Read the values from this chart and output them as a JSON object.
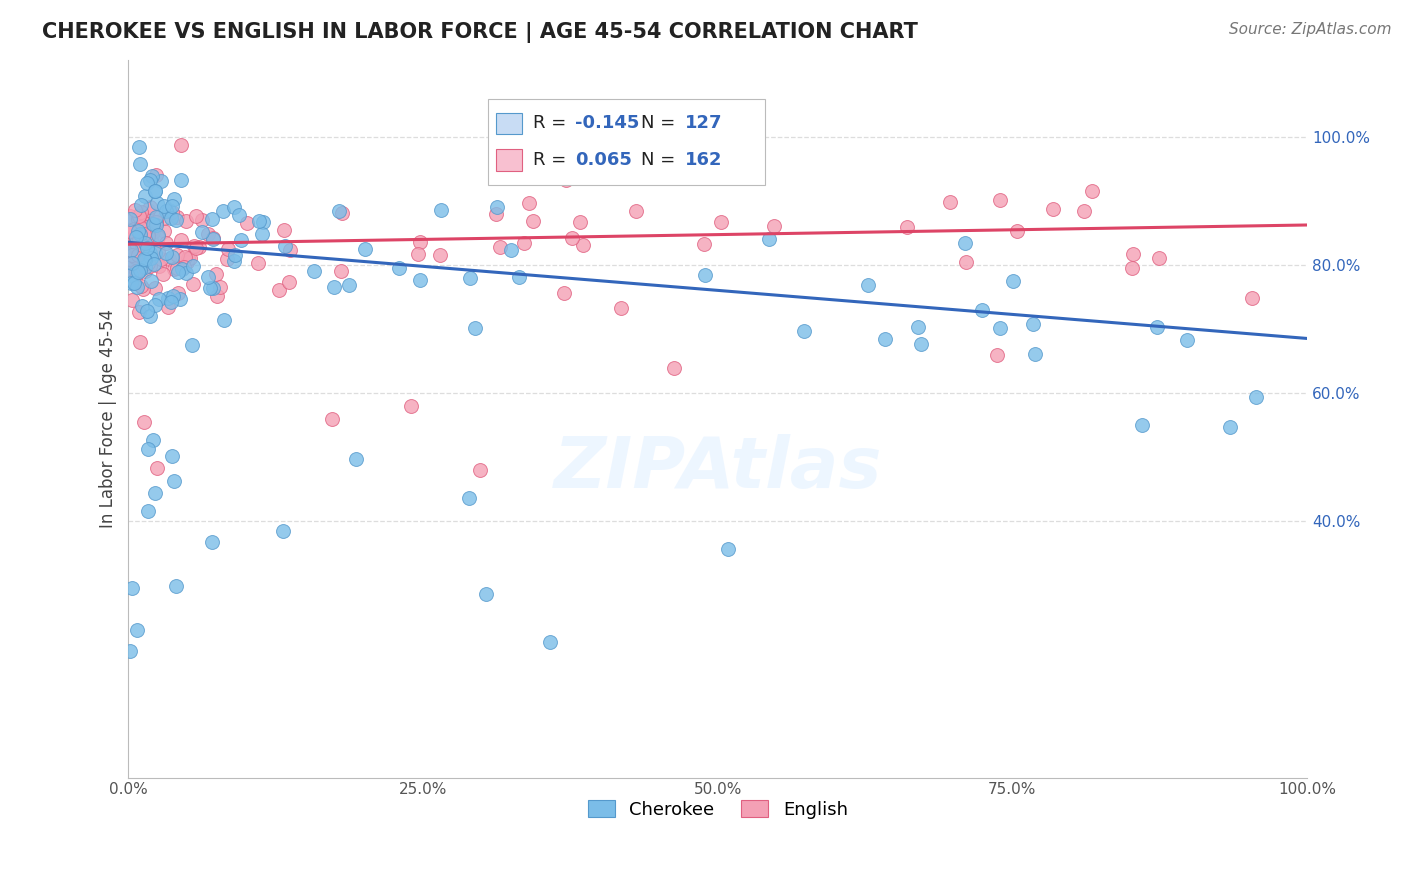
{
  "title": "CHEROKEE VS ENGLISH IN LABOR FORCE | AGE 45-54 CORRELATION CHART",
  "source": "Source: ZipAtlas.com",
  "ylabel": "In Labor Force | Age 45-54",
  "xlim": [
    0.0,
    1.0
  ],
  "ylim": [
    0.0,
    1.12
  ],
  "xticks": [
    0.0,
    0.25,
    0.5,
    0.75,
    1.0
  ],
  "xtick_labels": [
    "0.0%",
    "25.0%",
    "50.0%",
    "75.0%",
    "100.0%"
  ],
  "ytick_right_vals": [
    0.4,
    0.6,
    0.8,
    1.0
  ],
  "ytick_right_labels": [
    "40.0%",
    "60.0%",
    "80.0%",
    "100.0%"
  ],
  "cherokee_color": "#7bbde8",
  "english_color": "#f4a0b5",
  "cherokee_edge": "#5599cc",
  "english_edge": "#e06080",
  "blue_line_color": "#3366bb",
  "pink_line_color": "#dd4466",
  "legend_box_blue": "#c8dcf4",
  "legend_box_pink": "#f8c0d0",
  "R_cherokee": -0.145,
  "N_cherokee": 127,
  "R_english": 0.065,
  "N_english": 162,
  "watermark": "ZIPAtlas",
  "background_color": "#ffffff",
  "grid_color": "#dddddd",
  "title_fontsize": 15,
  "axis_label_fontsize": 12,
  "tick_fontsize": 11,
  "legend_fontsize": 13,
  "source_fontsize": 11,
  "watermark_fontsize": 52,
  "dot_size": 100,
  "blue_line_x0": 0.0,
  "blue_line_x1": 1.0,
  "blue_line_y0": 0.835,
  "blue_line_y1": 0.685,
  "pink_line_x0": 0.0,
  "pink_line_x1": 1.0,
  "pink_line_y0": 0.832,
  "pink_line_y1": 0.862
}
